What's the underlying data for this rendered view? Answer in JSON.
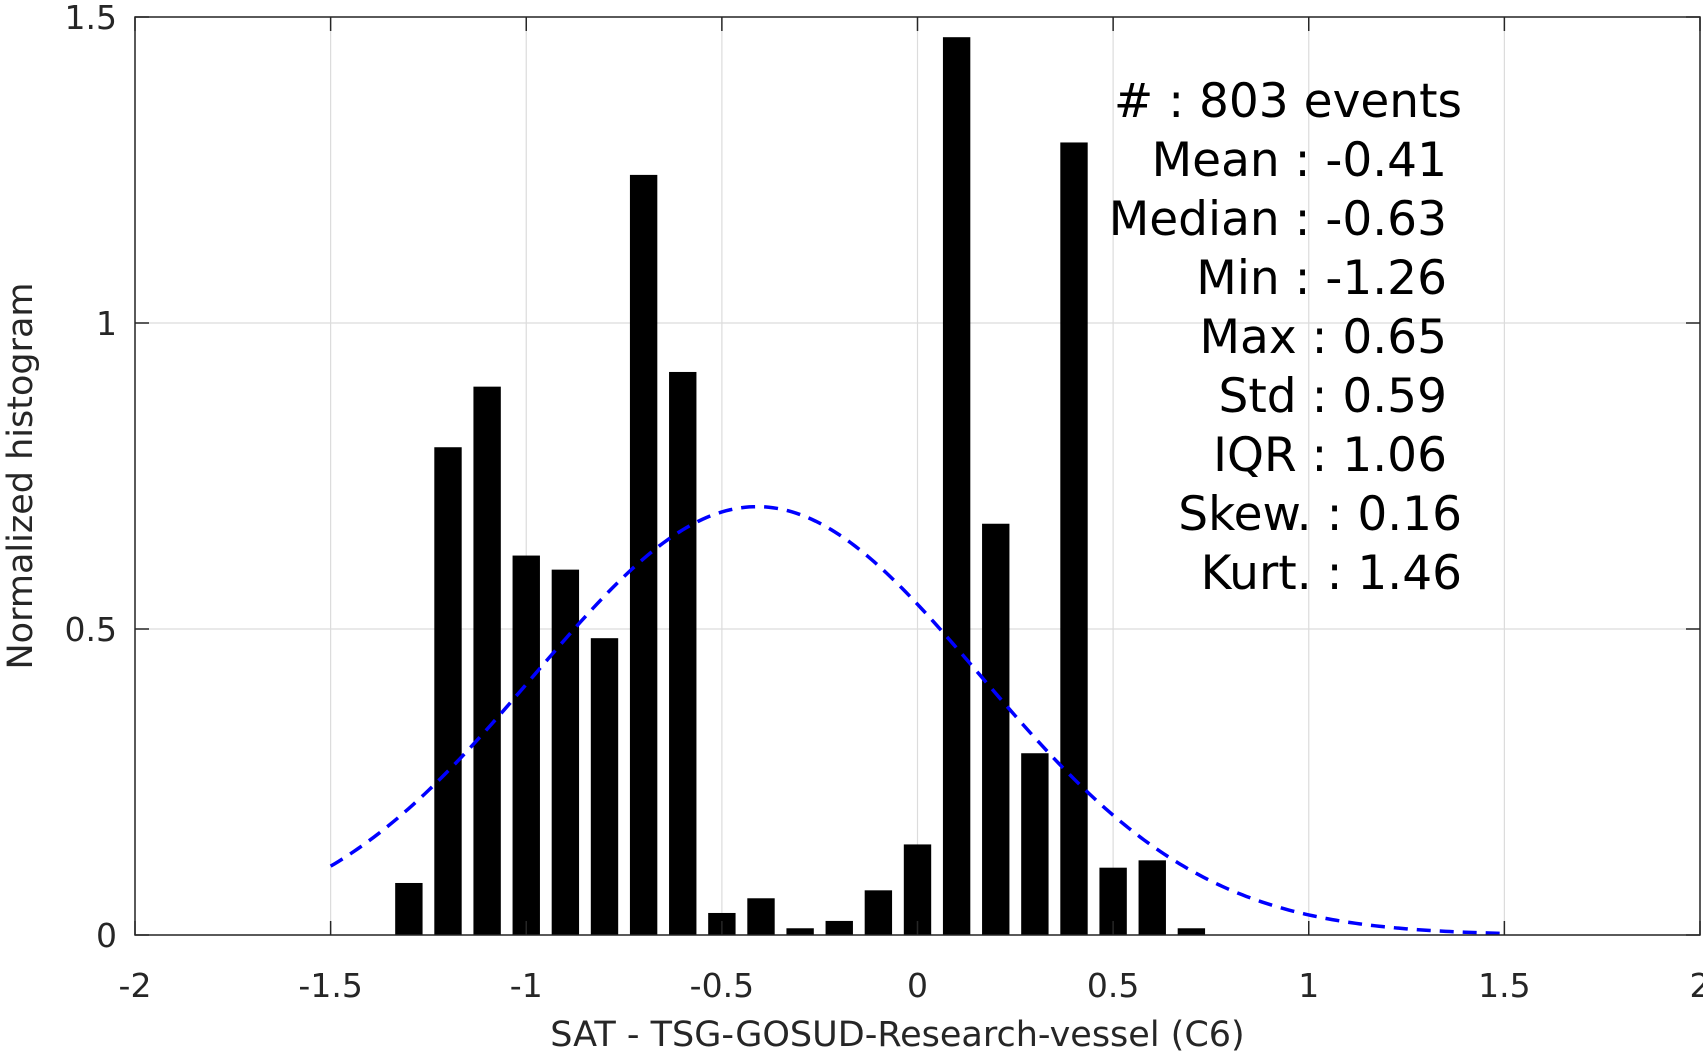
{
  "chart_data": {
    "type": "bar",
    "xlabel": "SAT - TSG-GOSUD-Research-vessel (C6)",
    "ylabel": "Normalized histogram",
    "xlim": [
      -2,
      2
    ],
    "ylim": [
      0,
      1.5
    ],
    "grid": true,
    "xticks": [
      -2,
      -1.5,
      -1,
      -0.5,
      0,
      0.5,
      1,
      1.5,
      2
    ],
    "xtick_labels": [
      "-2",
      "-1.5",
      "-1",
      "-0.5",
      "0",
      "0.5",
      "1",
      "1.5",
      "2"
    ],
    "yticks": [
      0,
      0.5,
      1,
      1.5
    ],
    "ytick_labels": [
      "0",
      "0.5",
      "1",
      "1.5"
    ],
    "bar_width": 0.07,
    "bars": [
      {
        "x": -1.3,
        "y": 0.085
      },
      {
        "x": -1.2,
        "y": 0.797
      },
      {
        "x": -1.1,
        "y": 0.896
      },
      {
        "x": -1.0,
        "y": 0.62
      },
      {
        "x": -0.9,
        "y": 0.597
      },
      {
        "x": -0.8,
        "y": 0.485
      },
      {
        "x": -0.7,
        "y": 1.242
      },
      {
        "x": -0.6,
        "y": 0.92
      },
      {
        "x": -0.5,
        "y": 0.036
      },
      {
        "x": -0.4,
        "y": 0.06
      },
      {
        "x": -0.3,
        "y": 0.011
      },
      {
        "x": -0.2,
        "y": 0.023
      },
      {
        "x": -0.1,
        "y": 0.073
      },
      {
        "x": 0.0,
        "y": 0.148
      },
      {
        "x": 0.1,
        "y": 1.467
      },
      {
        "x": 0.2,
        "y": 0.672
      },
      {
        "x": 0.3,
        "y": 0.297
      },
      {
        "x": 0.4,
        "y": 1.295
      },
      {
        "x": 0.5,
        "y": 0.11
      },
      {
        "x": 0.6,
        "y": 0.122
      },
      {
        "x": 0.7,
        "y": 0.011
      }
    ],
    "fit_curve": {
      "type": "normal",
      "mean": -0.41,
      "std": 0.57,
      "x_range": [
        -1.5,
        1.5
      ],
      "color": "#0000ff",
      "style": "dashed"
    },
    "bar_color": "#000000",
    "stats": [
      {
        "label": "#  :",
        "value": "803 events"
      },
      {
        "label": "Mean :",
        "value": "-0.41"
      },
      {
        "label": "Median :",
        "value": "-0.63"
      },
      {
        "label": "Min :",
        "value": "-1.26"
      },
      {
        "label": "Max :",
        "value": "0.65"
      },
      {
        "label": "Std :",
        "value": "0.59"
      },
      {
        "label": "IQR :",
        "value": "1.06"
      },
      {
        "label": "Skew. :",
        "value": "0.16"
      },
      {
        "label": "Kurt. :",
        "value": "1.46"
      }
    ]
  }
}
